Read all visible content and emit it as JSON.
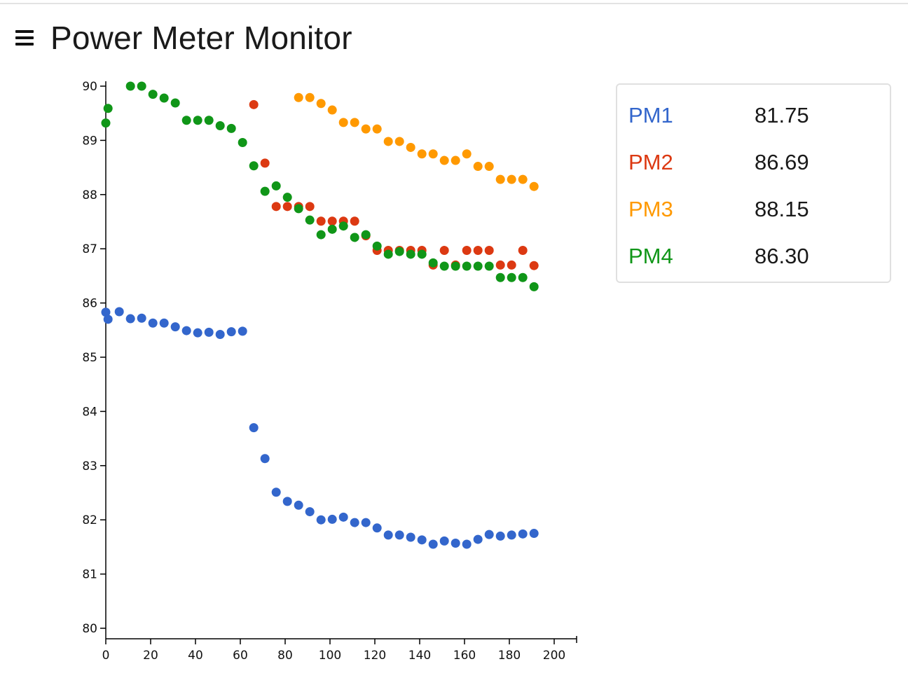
{
  "header": {
    "title": "Power Meter Monitor",
    "menu_icon": "hamburger-menu-icon"
  },
  "legend": [
    {
      "name": "PM1",
      "value": "81.75",
      "color": "#3366cc"
    },
    {
      "name": "PM2",
      "value": "86.69",
      "color": "#dc3912"
    },
    {
      "name": "PM3",
      "value": "88.15",
      "color": "#ff9900"
    },
    {
      "name": "PM4",
      "value": "86.30",
      "color": "#109618"
    }
  ],
  "chart_data": {
    "type": "scatter",
    "title": "",
    "xlabel": "",
    "ylabel": "",
    "xlim": [
      0,
      210
    ],
    "ylim": [
      80,
      90
    ],
    "xticks": [
      0,
      20,
      40,
      60,
      80,
      100,
      120,
      140,
      160,
      180,
      200
    ],
    "yticks": [
      80,
      81,
      82,
      83,
      84,
      85,
      86,
      87,
      88,
      89,
      90
    ],
    "grid": false,
    "legend_position": "right",
    "series": [
      {
        "name": "PM1",
        "color": "#3366cc",
        "points": [
          [
            0,
            85.83
          ],
          [
            1,
            85.7
          ],
          [
            6,
            85.84
          ],
          [
            11,
            85.71
          ],
          [
            16,
            85.72
          ],
          [
            21,
            85.63
          ],
          [
            26,
            85.63
          ],
          [
            31,
            85.56
          ],
          [
            36,
            85.49
          ],
          [
            41,
            85.45
          ],
          [
            46,
            85.46
          ],
          [
            51,
            85.42
          ],
          [
            56,
            85.47
          ],
          [
            61,
            85.48
          ],
          [
            66,
            83.7
          ],
          [
            71,
            83.13
          ],
          [
            76,
            82.51
          ],
          [
            81,
            82.34
          ],
          [
            86,
            82.27
          ],
          [
            91,
            82.15
          ],
          [
            96,
            82.0
          ],
          [
            101,
            82.01
          ],
          [
            106,
            82.05
          ],
          [
            111,
            81.95
          ],
          [
            116,
            81.95
          ],
          [
            121,
            81.85
          ],
          [
            126,
            81.72
          ],
          [
            131,
            81.72
          ],
          [
            136,
            81.68
          ],
          [
            141,
            81.63
          ],
          [
            146,
            81.55
          ],
          [
            151,
            81.61
          ],
          [
            156,
            81.57
          ],
          [
            161,
            81.55
          ],
          [
            166,
            81.64
          ],
          [
            171,
            81.73
          ],
          [
            176,
            81.7
          ],
          [
            181,
            81.72
          ],
          [
            186,
            81.74
          ],
          [
            191,
            81.75
          ]
        ]
      },
      {
        "name": "PM2",
        "color": "#dc3912",
        "points": [
          [
            66,
            89.66
          ],
          [
            71,
            88.58
          ],
          [
            76,
            87.78
          ],
          [
            81,
            87.78
          ],
          [
            86,
            87.78
          ],
          [
            91,
            87.78
          ],
          [
            96,
            87.51
          ],
          [
            101,
            87.51
          ],
          [
            106,
            87.51
          ],
          [
            111,
            87.51
          ],
          [
            116,
            87.24
          ],
          [
            121,
            86.97
          ],
          [
            126,
            86.97
          ],
          [
            131,
            86.97
          ],
          [
            136,
            86.97
          ],
          [
            141,
            86.97
          ],
          [
            146,
            86.7
          ],
          [
            151,
            86.97
          ],
          [
            156,
            86.7
          ],
          [
            161,
            86.97
          ],
          [
            166,
            86.97
          ],
          [
            171,
            86.97
          ],
          [
            176,
            86.7
          ],
          [
            181,
            86.7
          ],
          [
            186,
            86.97
          ],
          [
            191,
            86.69
          ]
        ]
      },
      {
        "name": "PM3",
        "color": "#ff9900",
        "points": [
          [
            86,
            89.79
          ],
          [
            91,
            89.79
          ],
          [
            96,
            89.68
          ],
          [
            101,
            89.56
          ],
          [
            106,
            89.33
          ],
          [
            111,
            89.33
          ],
          [
            116,
            89.21
          ],
          [
            121,
            89.21
          ],
          [
            126,
            88.98
          ],
          [
            131,
            88.98
          ],
          [
            136,
            88.87
          ],
          [
            141,
            88.75
          ],
          [
            146,
            88.75
          ],
          [
            151,
            88.63
          ],
          [
            156,
            88.63
          ],
          [
            161,
            88.75
          ],
          [
            166,
            88.52
          ],
          [
            171,
            88.52
          ],
          [
            176,
            88.28
          ],
          [
            181,
            88.28
          ],
          [
            186,
            88.28
          ],
          [
            191,
            88.15
          ]
        ]
      },
      {
        "name": "PM4",
        "color": "#109618",
        "points": [
          [
            0,
            89.32
          ],
          [
            1,
            89.59
          ],
          [
            11,
            90.0
          ],
          [
            16,
            90.0
          ],
          [
            21,
            89.85
          ],
          [
            26,
            89.78
          ],
          [
            31,
            89.69
          ],
          [
            36,
            89.37
          ],
          [
            41,
            89.37
          ],
          [
            46,
            89.37
          ],
          [
            51,
            89.27
          ],
          [
            56,
            89.22
          ],
          [
            61,
            88.96
          ],
          [
            66,
            88.53
          ],
          [
            71,
            88.06
          ],
          [
            76,
            88.16
          ],
          [
            81,
            87.95
          ],
          [
            86,
            87.74
          ],
          [
            91,
            87.53
          ],
          [
            96,
            87.26
          ],
          [
            101,
            87.36
          ],
          [
            106,
            87.42
          ],
          [
            111,
            87.21
          ],
          [
            116,
            87.26
          ],
          [
            121,
            87.05
          ],
          [
            126,
            86.9
          ],
          [
            131,
            86.95
          ],
          [
            136,
            86.9
          ],
          [
            141,
            86.9
          ],
          [
            146,
            86.74
          ],
          [
            151,
            86.68
          ],
          [
            156,
            86.68
          ],
          [
            161,
            86.68
          ],
          [
            166,
            86.68
          ],
          [
            171,
            86.68
          ],
          [
            176,
            86.47
          ],
          [
            181,
            86.47
          ],
          [
            186,
            86.47
          ],
          [
            191,
            86.3
          ]
        ]
      }
    ]
  }
}
